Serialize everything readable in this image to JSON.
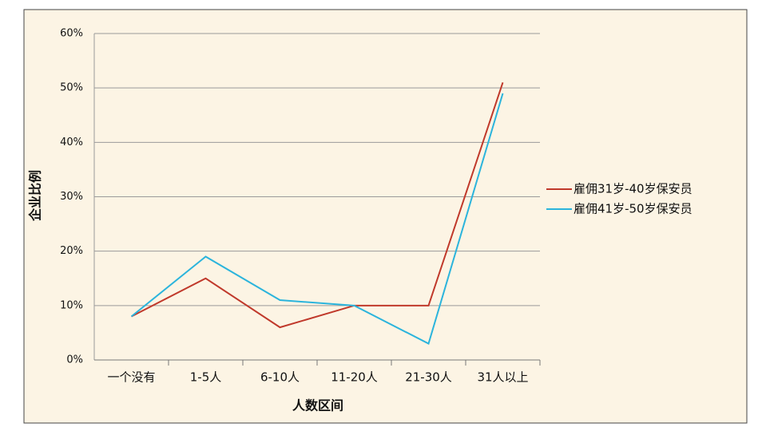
{
  "chart_data": {
    "type": "line",
    "categories": [
      "一个没有",
      "1-5人",
      "6-10人",
      "11-20人",
      "21-30人",
      "31人以上"
    ],
    "series": [
      {
        "name": "雇佣31岁-40岁保安员",
        "color": "#c0392b",
        "values": [
          8,
          15,
          6,
          10,
          10,
          51
        ]
      },
      {
        "name": "雇佣41岁-50岁保安员",
        "color": "#2bb4dc",
        "values": [
          8,
          19,
          11,
          10,
          3,
          49
        ]
      }
    ],
    "ylim": [
      0,
      60
    ],
    "yticks": [
      {
        "value": 0,
        "label": "0%"
      },
      {
        "value": 10,
        "label": "10%"
      },
      {
        "value": 20,
        "label": "20%"
      },
      {
        "value": 30,
        "label": "30%"
      },
      {
        "value": 40,
        "label": "40%"
      },
      {
        "value": 50,
        "label": "50%"
      },
      {
        "value": 60,
        "label": "60%"
      }
    ],
    "y_label": "企业比例",
    "x_label": "人数区间",
    "grid": true,
    "legend": "right"
  }
}
